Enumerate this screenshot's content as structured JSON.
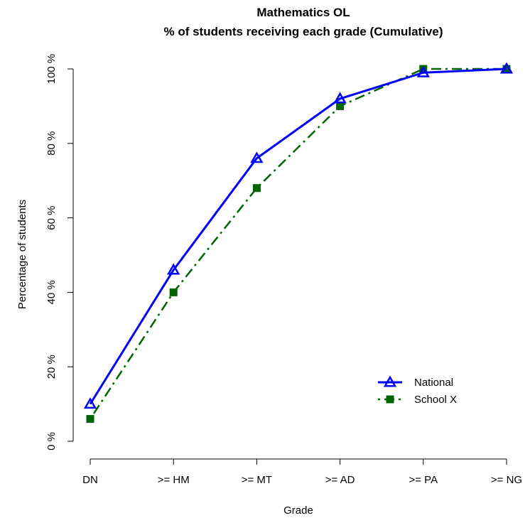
{
  "chart_data": {
    "type": "line",
    "title": "Mathematics OL",
    "subtitle": "% of students receiving each grade (Cumulative)",
    "xlabel": "Grade",
    "ylabel": "Percentage of students",
    "categories": [
      "DN",
      ">= HM",
      ">= MT",
      ">= AD",
      ">= PA",
      ">= NG"
    ],
    "y_ticks": [
      0,
      20,
      40,
      60,
      80,
      100
    ],
    "y_tick_labels": [
      "0 %",
      "20 %",
      "40 %",
      "60 %",
      "80 %",
      "100 %"
    ],
    "ylim": [
      0,
      100
    ],
    "grid": false,
    "legend_position": "bottom-right",
    "series": [
      {
        "name": "National",
        "values": [
          10,
          46,
          76,
          92,
          99,
          100
        ],
        "color": "#0000ff",
        "marker": "triangle",
        "line": "solid"
      },
      {
        "name": "School X",
        "values": [
          6,
          40,
          68,
          90,
          100,
          100
        ],
        "color": "#006400",
        "marker": "square",
        "line": "dotdash"
      }
    ]
  }
}
